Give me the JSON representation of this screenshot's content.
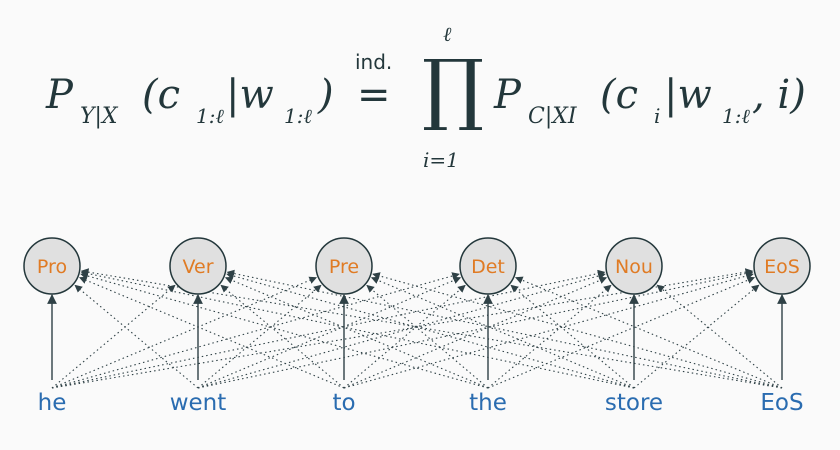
{
  "formula": {
    "lhs_p": "P",
    "lhs_sub": "Y|X",
    "lhs_args": "(c",
    "lhs_c_sub": "1:ℓ",
    "lhs_bar": "|w",
    "lhs_w_sub": "1:ℓ",
    "lhs_close": ")",
    "eq_label": "ind.",
    "eq_sign": "=",
    "prod_symbol": "∏",
    "prod_upper": "ℓ",
    "prod_lower": "i=1",
    "rhs_p": "P",
    "rhs_sub": "C|XI",
    "rhs_args": "(c",
    "rhs_c_sub": "i",
    "rhs_bar": "|w",
    "rhs_w_sub": "1:ℓ",
    "rhs_close": ", i)"
  },
  "tags": [
    "Pro",
    "Ver",
    "Pre",
    "Det",
    "Nou",
    "EoS"
  ],
  "words": [
    "he",
    "went",
    "to",
    "the",
    "store",
    "EoS"
  ],
  "colors": {
    "text": "#23373b",
    "tag": "#e07b24",
    "word": "#2a6cb0",
    "node_fill": "#e0e0e0",
    "edge": "#2f4146"
  }
}
